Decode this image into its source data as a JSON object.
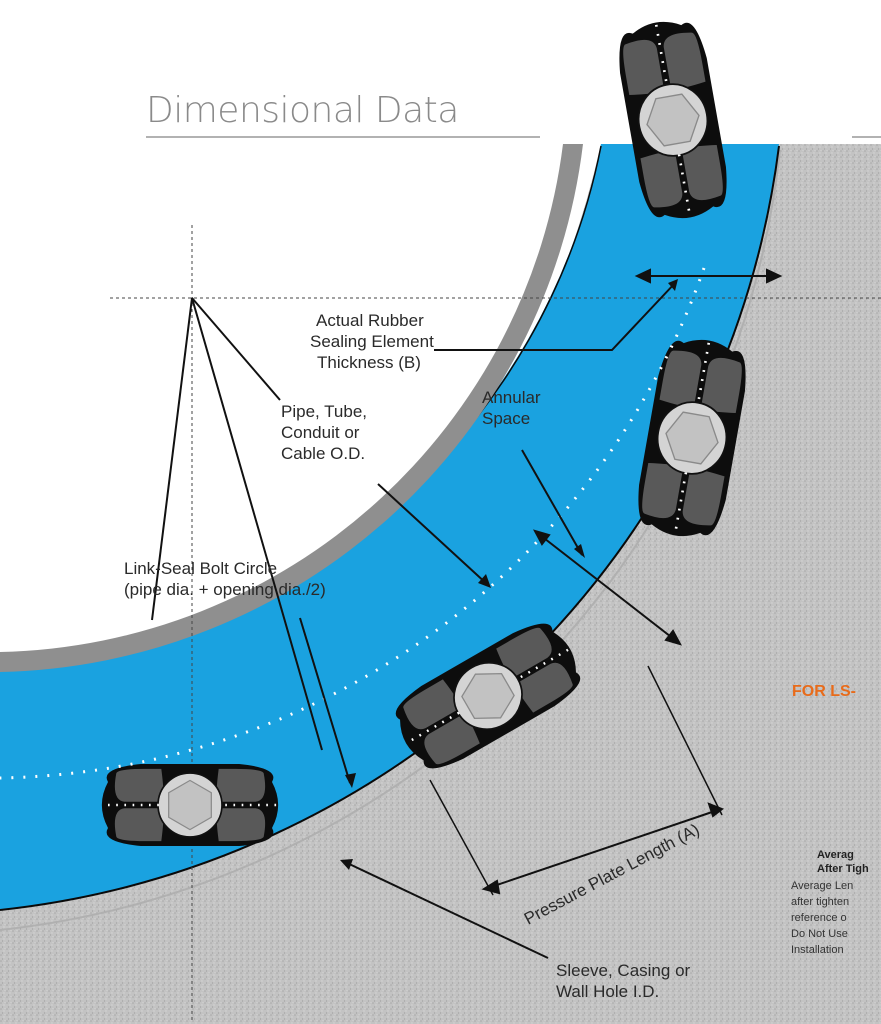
{
  "title": "Dimensional Data",
  "labels": {
    "rubber": [
      "Actual Rubber",
      "Sealing Element",
      "Thickness (B)"
    ],
    "pipe": [
      "Pipe, Tube,",
      "Conduit or",
      "Cable O.D."
    ],
    "annular": [
      "Annular",
      "Space"
    ],
    "boltcircle": [
      "Link-Seal Bolt Circle",
      "(pipe dia. + opening dia./2)"
    ],
    "plate": "Pressure Plate Length (A)",
    "sleeve": [
      "Sleeve, Casing or",
      "Wall Hole I.D."
    ]
  },
  "side": {
    "heading": "FOR LS-",
    "bold": [
      "Averag",
      "After Tigh"
    ],
    "text": [
      "Average Len",
      "after tighten",
      "reference o",
      "Do Not Use",
      "Installation"
    ]
  },
  "colors": {
    "blue": "#1aa2e0",
    "pipe_ring": "#8f8f8f",
    "sleeve": "#bcbcbc",
    "link": "#0d0d0d",
    "rubber": "#5a5a5a",
    "bolt": "#cfcfcf",
    "orange": "#e86b1a"
  }
}
